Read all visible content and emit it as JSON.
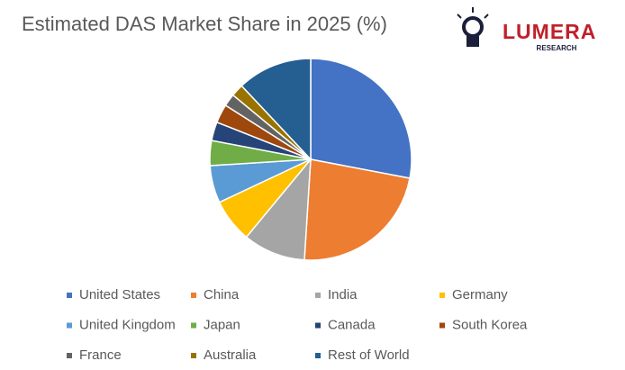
{
  "chart_data": {
    "type": "pie",
    "title": "Estimated DAS Market Share in 2025 (%)",
    "categories": [
      "United States",
      "China",
      "India",
      "Germany",
      "United Kingdom",
      "Japan",
      "Canada",
      "South Korea",
      "France",
      "Australia",
      "Rest of World"
    ],
    "values": [
      28,
      23,
      10,
      7,
      6,
      4,
      3,
      3,
      2,
      2,
      12
    ],
    "colors": [
      "#4472c4",
      "#ed7d31",
      "#a5a5a5",
      "#ffc000",
      "#5b9bd5",
      "#70ad47",
      "#264478",
      "#9e480e",
      "#636363",
      "#997300",
      "#255e91"
    ],
    "legend": "bottom"
  },
  "logo": {
    "name": "LUMERA",
    "tagline": "RESEARCH"
  }
}
